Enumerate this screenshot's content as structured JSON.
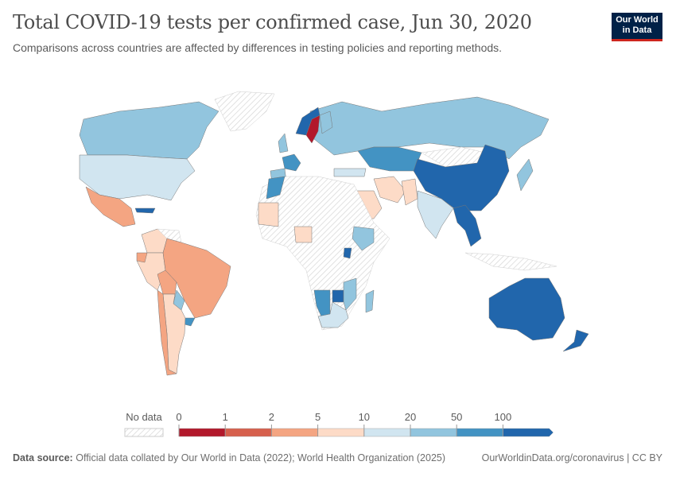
{
  "header": {
    "title": "Total COVID-19 tests per confirmed case, Jun 30, 2020",
    "subtitle": "Comparisons across countries are affected by differences in testing policies and reporting methods.",
    "logo_text": "Our World in Data"
  },
  "footer": {
    "source_label": "Data source:",
    "source_text": "Official data collated by Our World in Data (2022); World Health Organization (2025)",
    "url_text": "OurWorldinData.org/coronavirus | CC BY"
  },
  "chart_data": {
    "type": "choropleth",
    "title": "Total COVID-19 tests per confirmed case, Jun 30, 2020",
    "legend": {
      "no_data_label": "No data",
      "tick_labels": [
        "0",
        "1",
        "2",
        "5",
        "10",
        "20",
        "50",
        "100"
      ],
      "bins": [
        {
          "range": "0-1",
          "color": "#b2182b"
        },
        {
          "range": "1-2",
          "color": "#d6604d"
        },
        {
          "range": "2-5",
          "color": "#f4a582"
        },
        {
          "range": "5-10",
          "color": "#fddbc7"
        },
        {
          "range": "10-20",
          "color": "#d1e5f0"
        },
        {
          "range": "20-50",
          "color": "#92c5de"
        },
        {
          "range": "50-100",
          "color": "#4393c3"
        },
        {
          "range": ">100",
          "color": "#2166ac"
        }
      ],
      "no_data_color": "hatched"
    },
    "regions": [
      {
        "name": "Canada",
        "bin": "20-50"
      },
      {
        "name": "United States",
        "bin": "10-20"
      },
      {
        "name": "Mexico",
        "bin": "2-5"
      },
      {
        "name": "Greenland",
        "bin": "no data"
      },
      {
        "name": "Cuba",
        "bin": ">100"
      },
      {
        "name": "Colombia",
        "bin": "5-10"
      },
      {
        "name": "Venezuela",
        "bin": "no data"
      },
      {
        "name": "Peru",
        "bin": "5-10"
      },
      {
        "name": "Ecuador",
        "bin": "2-5"
      },
      {
        "name": "Brazil",
        "bin": "2-5"
      },
      {
        "name": "Bolivia",
        "bin": "2-5"
      },
      {
        "name": "Paraguay",
        "bin": "20-50"
      },
      {
        "name": "Uruguay",
        "bin": "50-100"
      },
      {
        "name": "Argentina",
        "bin": "5-10"
      },
      {
        "name": "Chile",
        "bin": "2-5"
      },
      {
        "name": "Russia",
        "bin": "20-50"
      },
      {
        "name": "Kazakhstan",
        "bin": "50-100"
      },
      {
        "name": "Mongolia",
        "bin": "no data"
      },
      {
        "name": "China",
        "bin": ">100"
      },
      {
        "name": "India",
        "bin": "10-20"
      },
      {
        "name": "Iran",
        "bin": "5-10"
      },
      {
        "name": "Saudi Arabia",
        "bin": "5-10"
      },
      {
        "name": "Pakistan",
        "bin": "5-10"
      },
      {
        "name": "Turkey",
        "bin": "10-20"
      },
      {
        "name": "Sweden",
        "bin": "0-1"
      },
      {
        "name": "Norway",
        "bin": ">100"
      },
      {
        "name": "Finland",
        "bin": "20-50"
      },
      {
        "name": "France",
        "bin": "50-100"
      },
      {
        "name": "Spain",
        "bin": "20-50"
      },
      {
        "name": "United Kingdom",
        "bin": "20-50"
      },
      {
        "name": "Myanmar/Thailand",
        "bin": ">100"
      },
      {
        "name": "Indonesia",
        "bin": "no data"
      },
      {
        "name": "Japan",
        "bin": "20-50"
      },
      {
        "name": "Australia",
        "bin": ">100"
      },
      {
        "name": "New Zealand",
        "bin": ">100"
      },
      {
        "name": "Africa (most)",
        "bin": "no data"
      },
      {
        "name": "Morocco",
        "bin": "50-100"
      },
      {
        "name": "Mauritania/Mali",
        "bin": "5-10"
      },
      {
        "name": "Nigeria",
        "bin": "5-10"
      },
      {
        "name": "Ethiopia",
        "bin": "20-50"
      },
      {
        "name": "Rwanda",
        "bin": ">100"
      },
      {
        "name": "Namibia",
        "bin": "50-100"
      },
      {
        "name": "Zimbabwe",
        "bin": ">100"
      },
      {
        "name": "Mozambique",
        "bin": "20-50"
      },
      {
        "name": "South Africa",
        "bin": "10-20"
      },
      {
        "name": "Madagascar",
        "bin": "20-50"
      }
    ]
  }
}
